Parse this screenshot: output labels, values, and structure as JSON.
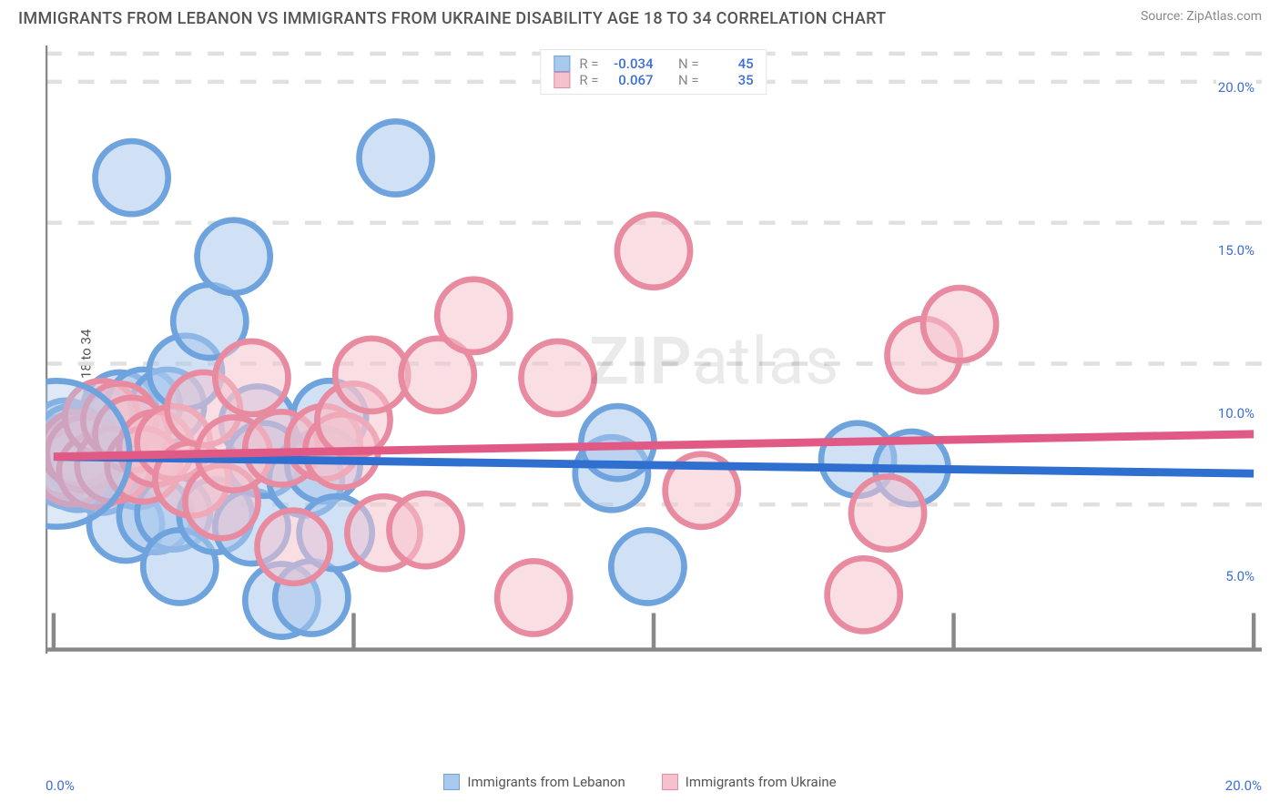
{
  "title": "IMMIGRANTS FROM LEBANON VS IMMIGRANTS FROM UKRAINE DISABILITY AGE 18 TO 34 CORRELATION CHART",
  "source": "Source: ZipAtlas.com",
  "ylabel": "Disability Age 18 to 34",
  "watermark": {
    "bold": "ZIP",
    "rest": "atlas"
  },
  "chart": {
    "type": "scatter",
    "xlim": [
      0,
      20
    ],
    "ylim": [
      0,
      21
    ],
    "x_ticks": [
      "0.0%",
      "20.0%"
    ],
    "y_ticks": [
      {
        "v": 5,
        "label": "5.0%"
      },
      {
        "v": 10,
        "label": "10.0%"
      },
      {
        "v": 15,
        "label": "15.0%"
      },
      {
        "v": 20,
        "label": "20.0%"
      }
    ],
    "x_tick_positions": [
      0,
      5,
      10,
      15,
      20
    ],
    "grid_color": "#e0e0e0",
    "grid_dash": "4 4",
    "axis_color": "#888888",
    "background": "#ffffff",
    "marker_radius": 9,
    "marker_stroke_width": 1.5,
    "trend_width": 2,
    "series": [
      {
        "name": "Immigrants from Lebanon",
        "fill": "#a9c9ec",
        "stroke": "#6fa3dd",
        "trend_color": "#2f6fd0",
        "R": "-0.034",
        "N": "45",
        "trend": {
          "y0": 6.7,
          "y1": 6.1
        },
        "points": [
          [
            0.1,
            6.8
          ],
          [
            0.15,
            6.6
          ],
          [
            0.2,
            7.4
          ],
          [
            0.25,
            6.2
          ],
          [
            0.3,
            6.4
          ],
          [
            0.35,
            6.9
          ],
          [
            0.4,
            6.3
          ],
          [
            0.45,
            7.0
          ],
          [
            0.5,
            6.5
          ],
          [
            0.6,
            6.2
          ],
          [
            0.7,
            6.4
          ],
          [
            0.8,
            6.0
          ],
          [
            0.9,
            6.7
          ],
          [
            1.0,
            7.7
          ],
          [
            1.1,
            8.4
          ],
          [
            1.2,
            4.3
          ],
          [
            1.3,
            16.6
          ],
          [
            1.4,
            6.2
          ],
          [
            1.5,
            8.5
          ],
          [
            1.7,
            4.6
          ],
          [
            1.9,
            8.5
          ],
          [
            2.0,
            4.7
          ],
          [
            2.1,
            2.8
          ],
          [
            2.2,
            9.7
          ],
          [
            2.6,
            11.5
          ],
          [
            2.7,
            4.6
          ],
          [
            3.0,
            13.8
          ],
          [
            3.3,
            4.2
          ],
          [
            3.4,
            7.9
          ],
          [
            3.5,
            6.6
          ],
          [
            3.8,
            1.6
          ],
          [
            4.2,
            5.9
          ],
          [
            4.3,
            1.7
          ],
          [
            4.5,
            6.4
          ],
          [
            4.6,
            8.1
          ],
          [
            4.7,
            4.0
          ],
          [
            5.7,
            17.3
          ],
          [
            9.3,
            6.1
          ],
          [
            9.4,
            7.2
          ],
          [
            9.9,
            2.8
          ],
          [
            13.4,
            6.6
          ],
          [
            14.3,
            6.3
          ],
          [
            0.3,
            7.2
          ],
          [
            0.4,
            6.1
          ],
          [
            0.55,
            6.8
          ]
        ]
      },
      {
        "name": "Immigrants from Ukraine",
        "fill": "#f4c2cd",
        "stroke": "#e88ba0",
        "trend_color": "#e05a85",
        "R": "0.067",
        "N": "35",
        "trend": {
          "y0": 6.7,
          "y1": 7.5
        },
        "points": [
          [
            0.2,
            6.6
          ],
          [
            0.3,
            6.3
          ],
          [
            0.4,
            7.0
          ],
          [
            0.5,
            6.8
          ],
          [
            0.7,
            6.2
          ],
          [
            0.8,
            8.1
          ],
          [
            1.0,
            6.4
          ],
          [
            1.1,
            8.0
          ],
          [
            1.3,
            7.5
          ],
          [
            1.5,
            6.4
          ],
          [
            1.7,
            7.0
          ],
          [
            2.0,
            7.2
          ],
          [
            2.3,
            5.9
          ],
          [
            2.5,
            8.4
          ],
          [
            2.8,
            5.1
          ],
          [
            3.0,
            6.8
          ],
          [
            3.3,
            9.5
          ],
          [
            3.8,
            7.0
          ],
          [
            4.0,
            3.5
          ],
          [
            4.5,
            7.2
          ],
          [
            4.8,
            6.9
          ],
          [
            5.0,
            8.0
          ],
          [
            5.3,
            9.6
          ],
          [
            5.5,
            4.0
          ],
          [
            6.2,
            4.1
          ],
          [
            6.4,
            9.6
          ],
          [
            7.0,
            11.7
          ],
          [
            8.0,
            1.7
          ],
          [
            8.4,
            9.5
          ],
          [
            10.0,
            14.0
          ],
          [
            10.8,
            5.5
          ],
          [
            13.5,
            1.8
          ],
          [
            13.9,
            4.7
          ],
          [
            14.5,
            10.3
          ],
          [
            15.1,
            11.4
          ]
        ]
      }
    ]
  },
  "legend_bottom": [
    {
      "label": "Immigrants from Lebanon",
      "fill": "#a9c9ec",
      "stroke": "#6fa3dd"
    },
    {
      "label": "Immigrants from Ukraine",
      "fill": "#f4c2cd",
      "stroke": "#e88ba0"
    }
  ]
}
